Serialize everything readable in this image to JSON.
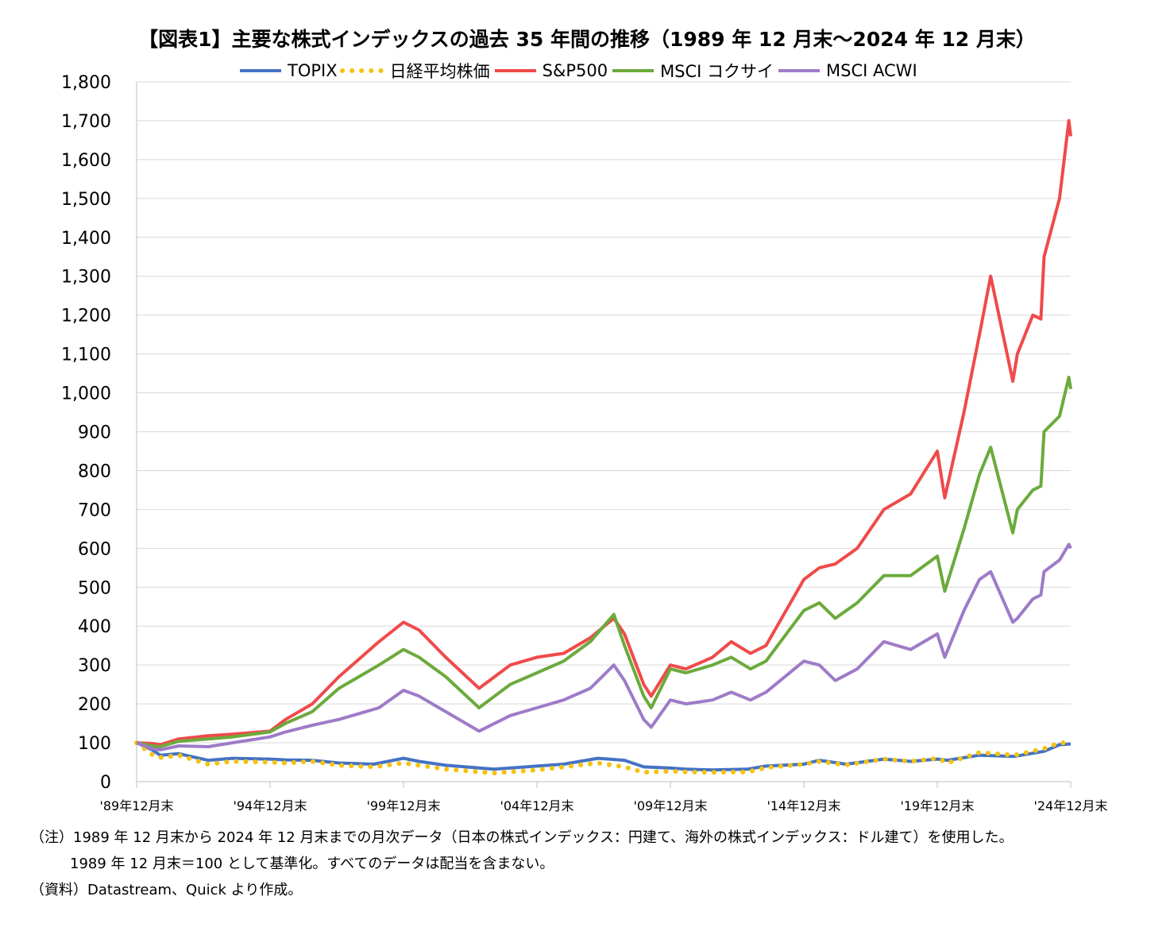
{
  "chart_data": {
    "type": "line",
    "title": "【図表1】主要な株式インデックスの過去 35 年間の推移（1989 年 12 月末～2024 年 12 月末）",
    "xlabel": "",
    "ylabel": "",
    "ylim": [
      0,
      1800
    ],
    "yticks": [
      "0",
      "100",
      "200",
      "300",
      "400",
      "500",
      "600",
      "700",
      "800",
      "900",
      "1,000",
      "1,100",
      "1,200",
      "1,300",
      "1,400",
      "1,500",
      "1,600",
      "1,700",
      "1,800"
    ],
    "xticks": [
      "'89年12月末",
      "'94年12月末",
      "'99年12月末",
      "'04年12月末",
      "'09年12月末",
      "'14年12月末",
      "'19年12月末",
      "'24年12月末"
    ],
    "xlim": [
      1989.92,
      2024.92
    ],
    "grid": true,
    "legend_position": "top",
    "series": [
      {
        "name": "TOPIX",
        "color": "#4472C4",
        "style": "solid",
        "x": [
          1989.92,
          1990.5,
          1990.8,
          1991.5,
          1992.6,
          1993.5,
          1994.92,
          1995.5,
          1996.5,
          1997.5,
          1998.8,
          1999.92,
          2000.5,
          2001.5,
          2003.3,
          2004.92,
          2005.92,
          2007.2,
          2008.2,
          2008.92,
          2009.92,
          2010.5,
          2011.5,
          2012.8,
          2013.5,
          2014.92,
          2015.5,
          2016.5,
          2017.92,
          2018.92,
          2019.92,
          2020.3,
          2021.5,
          2022.8,
          2023.92,
          2024.5,
          2024.92
        ],
        "values": [
          100,
          82,
          68,
          72,
          55,
          60,
          58,
          56,
          55,
          48,
          45,
          60,
          52,
          42,
          32,
          40,
          45,
          60,
          55,
          38,
          35,
          32,
          30,
          32,
          40,
          45,
          55,
          45,
          58,
          52,
          58,
          55,
          68,
          65,
          78,
          95,
          97
        ]
      },
      {
        "name": "日経平均株価",
        "color": "#F5C20F",
        "style": "dotted",
        "x": [
          1989.92,
          1990.5,
          1990.8,
          1991.5,
          1992.6,
          1993.5,
          1994.92,
          1995.5,
          1996.5,
          1997.5,
          1998.8,
          1999.92,
          2000.5,
          2001.5,
          2003.3,
          2004.92,
          2005.92,
          2007.2,
          2008.2,
          2008.92,
          2009.92,
          2010.5,
          2011.5,
          2012.8,
          2013.5,
          2014.92,
          2015.5,
          2016.5,
          2017.92,
          2018.92,
          2019.92,
          2020.3,
          2021.5,
          2022.8,
          2023.92,
          2024.5,
          2024.92
        ],
        "values": [
          100,
          70,
          62,
          68,
          45,
          52,
          50,
          48,
          52,
          42,
          38,
          48,
          42,
          32,
          22,
          30,
          38,
          48,
          38,
          24,
          27,
          25,
          24,
          25,
          36,
          45,
          52,
          43,
          58,
          52,
          60,
          48,
          75,
          68,
          85,
          100,
          100
        ]
      },
      {
        "name": "S&P500",
        "color": "#F04A4A",
        "style": "solid",
        "x": [
          1989.92,
          1990.5,
          1990.8,
          1991.5,
          1992.6,
          1993.5,
          1994.92,
          1995.5,
          1996.5,
          1997.5,
          1998.5,
          1999.0,
          1999.92,
          2000.5,
          2001.5,
          2002.75,
          2003.92,
          2004.92,
          2005.92,
          2006.92,
          2007.8,
          2008.2,
          2008.92,
          2009.2,
          2009.92,
          2010.5,
          2011.5,
          2012.2,
          2012.92,
          2013.5,
          2014.92,
          2015.5,
          2016.1,
          2016.92,
          2017.92,
          2018.92,
          2019.92,
          2020.2,
          2020.92,
          2021.5,
          2021.92,
          2022.75,
          2022.92,
          2023.5,
          2023.8,
          2023.92,
          2024.5,
          2024.85,
          2024.92
        ],
        "values": [
          100,
          98,
          95,
          110,
          118,
          122,
          130,
          160,
          200,
          270,
          330,
          360,
          410,
          390,
          320,
          240,
          300,
          320,
          330,
          370,
          420,
          380,
          250,
          220,
          300,
          290,
          320,
          360,
          330,
          350,
          520,
          550,
          560,
          600,
          700,
          740,
          850,
          730,
          950,
          1150,
          1300,
          1030,
          1100,
          1200,
          1190,
          1350,
          1500,
          1700,
          1660
        ]
      },
      {
        "name": "MSCI コクサイ",
        "color": "#6BAA3C",
        "style": "solid",
        "x": [
          1989.92,
          1990.5,
          1990.8,
          1991.5,
          1992.6,
          1993.5,
          1994.92,
          1995.5,
          1996.5,
          1997.5,
          1998.5,
          1999.0,
          1999.92,
          2000.5,
          2001.5,
          2002.75,
          2003.92,
          2004.92,
          2005.92,
          2006.92,
          2007.8,
          2008.2,
          2008.92,
          2009.2,
          2009.92,
          2010.5,
          2011.5,
          2012.2,
          2012.92,
          2013.5,
          2014.92,
          2015.5,
          2016.1,
          2016.92,
          2017.92,
          2018.92,
          2019.92,
          2020.2,
          2020.92,
          2021.5,
          2021.92,
          2022.75,
          2022.92,
          2023.5,
          2023.8,
          2023.92,
          2024.5,
          2024.85,
          2024.92
        ],
        "values": [
          100,
          92,
          90,
          104,
          110,
          115,
          128,
          150,
          180,
          240,
          280,
          300,
          340,
          320,
          270,
          190,
          250,
          280,
          310,
          360,
          430,
          350,
          220,
          190,
          290,
          280,
          300,
          320,
          290,
          310,
          440,
          460,
          420,
          460,
          530,
          530,
          580,
          490,
          650,
          790,
          860,
          640,
          700,
          750,
          760,
          900,
          940,
          1040,
          1010
        ]
      },
      {
        "name": "MSCI ACWI",
        "color": "#9E7BC8",
        "style": "solid",
        "x": [
          1989.92,
          1990.5,
          1990.8,
          1991.5,
          1992.6,
          1993.5,
          1994.92,
          1995.5,
          1996.5,
          1997.5,
          1998.5,
          1999.0,
          1999.92,
          2000.5,
          2001.5,
          2002.75,
          2003.92,
          2004.92,
          2005.92,
          2006.92,
          2007.8,
          2008.2,
          2008.92,
          2009.2,
          2009.92,
          2010.5,
          2011.5,
          2012.2,
          2012.92,
          2013.5,
          2014.92,
          2015.5,
          2016.1,
          2016.92,
          2017.92,
          2018.92,
          2019.92,
          2020.2,
          2020.92,
          2021.5,
          2021.92,
          2022.75,
          2022.92,
          2023.5,
          2023.8,
          2023.92,
          2024.5,
          2024.85,
          2024.92
        ],
        "values": [
          100,
          85,
          82,
          92,
          90,
          100,
          115,
          128,
          145,
          160,
          180,
          190,
          235,
          220,
          180,
          130,
          170,
          190,
          210,
          240,
          300,
          260,
          160,
          140,
          210,
          200,
          210,
          230,
          210,
          230,
          310,
          300,
          260,
          290,
          360,
          340,
          380,
          320,
          440,
          520,
          540,
          410,
          420,
          470,
          480,
          540,
          570,
          610,
          600
        ]
      }
    ]
  },
  "notes": {
    "line1": "（注）1989 年 12 月末から 2024 年 12 月末までの月次データ（日本の株式インデックス：円建て、海外の株式インデックス：ドル建て）を使用した。",
    "line2": "1989 年 12 月末＝100 として基準化。すべてのデータは配当を含まない。",
    "line3": "（資料）Datastream、Quick より作成。"
  }
}
